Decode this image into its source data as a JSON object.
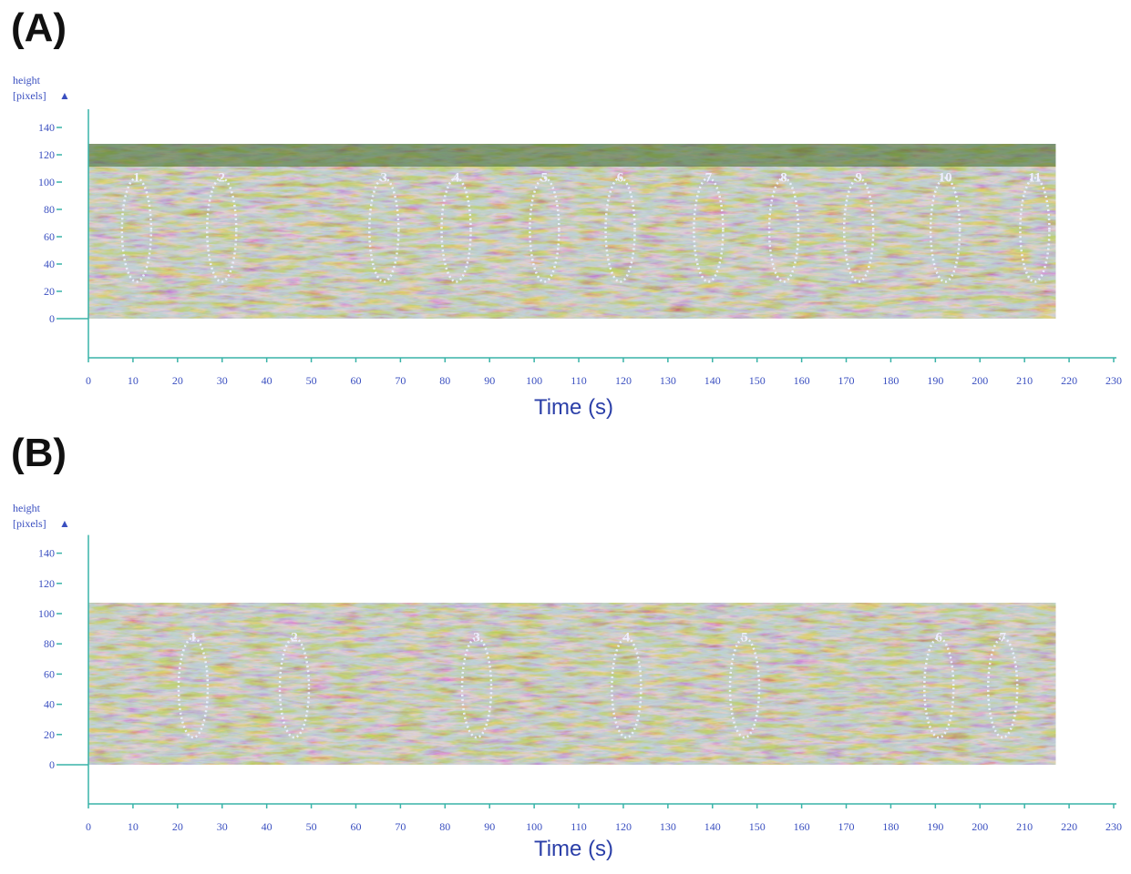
{
  "chart_data": [
    {
      "type": "image",
      "panel": "(A)",
      "ylabel_lines": [
        "height",
        "[pixels]"
      ],
      "xlabel": "Time (s)",
      "xlim": [
        0,
        230
      ],
      "xticks": [
        0,
        10,
        20,
        30,
        40,
        50,
        60,
        70,
        80,
        90,
        100,
        110,
        120,
        130,
        140,
        150,
        160,
        170,
        180,
        190,
        200,
        210,
        220,
        230
      ],
      "ylim": [
        0,
        140
      ],
      "yticks": [
        0,
        20,
        40,
        60,
        80,
        100,
        120,
        140
      ],
      "image_extent": {
        "time": [
          0,
          217
        ],
        "height": [
          0,
          128
        ]
      },
      "events": [
        {
          "label": "1",
          "time": 10.8
        },
        {
          "label": "2",
          "time": 29.9
        },
        {
          "label": "3",
          "time": 66.3
        },
        {
          "label": "4",
          "time": 82.5
        },
        {
          "label": "5",
          "time": 102.3
        },
        {
          "label": "6",
          "time": 119.3
        },
        {
          "label": "7",
          "time": 139.1
        },
        {
          "label": "8",
          "time": 156.0
        },
        {
          "label": "9",
          "time": 172.8
        },
        {
          "label": "10",
          "time": 192.2
        },
        {
          "label": "11",
          "time": 212.3
        }
      ]
    },
    {
      "type": "image",
      "panel": "(B)",
      "ylabel_lines": [
        "height",
        "[pixels]"
      ],
      "xlabel": "Time (s)",
      "xlim": [
        0,
        230
      ],
      "xticks": [
        0,
        10,
        20,
        30,
        40,
        50,
        60,
        70,
        80,
        90,
        100,
        110,
        120,
        130,
        140,
        150,
        160,
        170,
        180,
        190,
        200,
        210,
        220,
        230
      ],
      "ylim": [
        0,
        140
      ],
      "yticks": [
        0,
        20,
        40,
        60,
        80,
        100,
        120,
        140
      ],
      "image_extent": {
        "time": [
          0,
          217
        ],
        "height": [
          0,
          107
        ]
      },
      "events": [
        {
          "label": "1",
          "time": 23.5
        },
        {
          "label": "2",
          "time": 46.2
        },
        {
          "label": "3",
          "time": 87.1
        },
        {
          "label": "4",
          "time": 120.7
        },
        {
          "label": "5",
          "time": 147.2
        },
        {
          "label": "6",
          "time": 190.8
        },
        {
          "label": "7",
          "time": 205.1
        }
      ]
    }
  ]
}
